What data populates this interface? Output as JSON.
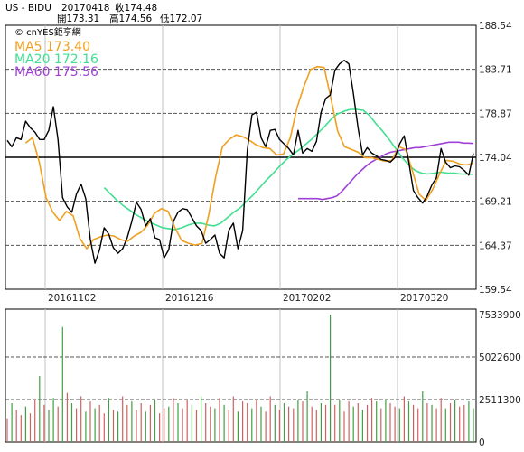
{
  "header": {
    "symbol": "US - BIDU",
    "date": "20170418",
    "close_label": "收174.48",
    "open_label": "開173.31",
    "high_label": "高174.56",
    "low_label": "低172.07"
  },
  "source_label": "© cnYES鉅亨網",
  "colors": {
    "price": "#000000",
    "ma5": "#f0a020",
    "ma20": "#40e090",
    "ma60": "#a040d8",
    "vol_up": "#d06060",
    "vol_down": "#40a040",
    "grid_dash": "#555555",
    "grid_vert": "#c0c0c0",
    "frame": "#000000"
  },
  "chart_data": [
    {
      "type": "line",
      "title": "",
      "x_tick_labels": [
        "20161102",
        "20161216",
        "20170202",
        "20170320"
      ],
      "y_tick_labels": [
        "188.54",
        "183.71",
        "178.87",
        "174.04",
        "169.21",
        "164.37",
        "159.54"
      ],
      "ylim": [
        159.54,
        188.54
      ],
      "reference_line": 174.04,
      "grid": true,
      "series": [
        {
          "name": "MA5 173.40",
          "role": "ma5",
          "x_start": 8,
          "values": [
            175.6,
            176.2,
            173.5,
            169.6,
            168.0,
            167.1,
            168.1,
            167.6,
            165.1,
            164.0,
            165.0,
            165.3,
            165.5,
            165.4,
            165.0,
            164.8,
            165.4,
            165.8,
            166.6,
            167.9,
            168.4,
            168.1,
            166.3,
            164.9,
            164.6,
            164.4,
            164.6,
            167.8,
            171.9,
            175.2,
            176.0,
            176.5,
            176.3,
            175.9,
            175.4,
            175.1,
            175.0,
            174.3,
            174.4,
            176.2,
            179.5,
            181.8,
            183.7,
            184.0,
            183.9,
            180.5,
            176.9,
            175.2,
            174.9,
            174.6,
            174.0,
            174.0,
            173.8,
            173.6,
            173.7,
            175.2,
            174.9,
            172.6,
            170.0,
            169.3,
            170.5,
            172.2,
            173.7,
            173.6,
            173.3,
            173.2,
            173.4
          ],
          "step": 2
        },
        {
          "name": "MA20 172.16",
          "role": "ma20",
          "x_start": 42,
          "step": 2,
          "values": [
            170.7,
            170.0,
            169.3,
            168.7,
            168.2,
            167.7,
            167.3,
            166.9,
            166.6,
            166.3,
            166.2,
            166.1,
            166.3,
            166.6,
            166.8,
            166.8,
            166.6,
            166.5,
            166.8,
            167.4,
            168.0,
            168.5,
            169.2,
            169.9,
            170.7,
            171.5,
            172.2,
            173.0,
            173.7,
            174.3,
            174.8,
            175.4,
            176.0,
            176.7,
            177.4,
            178.2,
            178.8,
            179.1,
            179.3,
            179.3,
            179.2,
            178.6,
            177.7,
            176.9,
            176.0,
            175.0,
            174.0,
            173.2,
            172.6,
            172.3,
            172.2,
            172.3,
            172.4,
            172.3,
            172.3,
            172.2,
            172.2,
            172.16
          ]
        },
        {
          "name": "MA60 175.56",
          "role": "ma60",
          "x_start": 127,
          "step": 2,
          "values": [
            169.5,
            169.5,
            169.5,
            169.5,
            169.5,
            169.4,
            169.5,
            169.6,
            169.8,
            170.3,
            170.9,
            171.5,
            172.1,
            172.6,
            173.1,
            173.5,
            173.8,
            174.1,
            174.4,
            174.6,
            174.7,
            174.8,
            174.9,
            175.0,
            175.1,
            175.1,
            175.2,
            175.3,
            175.4,
            175.5,
            175.6,
            175.7,
            175.7,
            175.7,
            175.6,
            175.6,
            175.56
          ]
        },
        {
          "name": "BIDU",
          "role": "price",
          "x_start": 0,
          "step": 2,
          "values": [
            175.9,
            175.2,
            176.2,
            176.0,
            178.0,
            177.3,
            176.8,
            176.0,
            176.0,
            177.0,
            179.6,
            176.0,
            169.6,
            168.6,
            168.0,
            170.0,
            171.1,
            169.5,
            165.0,
            162.4,
            163.9,
            166.3,
            165.6,
            164.1,
            163.5,
            164.0,
            165.2,
            167.0,
            169.1,
            168.3,
            166.5,
            167.3,
            165.2,
            165.0,
            163.0,
            163.9,
            167.0,
            168.0,
            168.4,
            168.3,
            167.4,
            166.5,
            166.0,
            164.6,
            165.0,
            165.5,
            163.5,
            163.0,
            166.0,
            166.8,
            164.0,
            166.0,
            174.8,
            178.7,
            179.0,
            176.2,
            175.2,
            177.0,
            177.1,
            176.0,
            175.5,
            175.0,
            174.3,
            177.0,
            174.5,
            175.0,
            174.7,
            175.8,
            179.0,
            180.5,
            180.9,
            183.6,
            184.3,
            184.7,
            184.3,
            181.0,
            177.3,
            174.3,
            175.1,
            174.5,
            174.2,
            173.8,
            173.7,
            173.5,
            174.0,
            175.5,
            176.4,
            173.5,
            170.4,
            169.6,
            169.0,
            169.8,
            171.0,
            171.8,
            175.0,
            173.5,
            172.9,
            173.1,
            173.0,
            172.6,
            172.07,
            174.48
          ],
          "x_positions_note": "spaced across plot"
        }
      ]
    },
    {
      "type": "bar",
      "title": "",
      "y_tick_labels": [
        "7533900",
        "5022600",
        "2511300",
        "0"
      ],
      "ylim": [
        0,
        7533900
      ],
      "series": [
        {
          "name": "Volume",
          "values": [
            1400000,
            2300000,
            1900000,
            1600000,
            2100000,
            1700000,
            2500000,
            3900000,
            2200000,
            1900000,
            2600000,
            2100000,
            6800000,
            2900000,
            2300000,
            2000000,
            2700000,
            1800000,
            2400000,
            2000000,
            2200000,
            1700000,
            2600000,
            1900000,
            1800000,
            2700000,
            2200000,
            2400000,
            1900000,
            2300000,
            1800000,
            2200000,
            2500000,
            1700000,
            2000000,
            2100000,
            2600000,
            2300000,
            2000000,
            2500000,
            2200000,
            1900000,
            2700000,
            2300000,
            2100000,
            2000000,
            2600000,
            2200000,
            1900000,
            2700000,
            1800000,
            2400000,
            2300000,
            2000000,
            2500000,
            2100000,
            1800000,
            2700000,
            2200000,
            1900000,
            2300000,
            2100000,
            2000000,
            2500000,
            2400000,
            3000000,
            2100000,
            1900000,
            2300000,
            2200000,
            7533900,
            2200000,
            2500000,
            1800000,
            2400000,
            2100000,
            2300000,
            1900000,
            2200000,
            2600000,
            2400000,
            2000000,
            2500000,
            2300000,
            2100000,
            2000000,
            2700000,
            2400000,
            2200000,
            2000000,
            3000000,
            2300000,
            2200000,
            2000000,
            2600000,
            2000000,
            2300000,
            2500000,
            2100000,
            2200000,
            2400000,
            2000000
          ],
          "up": [
            1,
            0,
            1,
            1,
            0,
            1,
            1,
            0,
            1,
            0,
            0,
            1,
            0,
            1,
            0,
            1,
            1,
            0,
            1,
            0,
            1,
            1,
            0,
            1,
            0,
            1,
            1,
            0,
            1,
            1,
            0,
            1,
            0,
            1,
            1,
            0,
            1,
            0,
            1,
            1,
            0,
            1,
            0,
            1,
            1,
            0,
            1,
            0,
            1,
            1,
            0,
            1,
            1,
            0,
            1,
            0,
            1,
            1,
            0,
            1,
            0,
            1,
            1,
            0,
            1,
            0,
            1,
            1,
            0,
            1,
            0,
            1,
            0,
            1,
            1,
            0,
            1,
            0,
            1,
            1,
            0,
            1,
            0,
            1,
            1,
            0,
            1,
            0,
            1,
            1,
            0,
            1,
            0,
            1,
            1,
            0,
            1,
            0,
            1,
            1,
            0
          ]
        }
      ]
    }
  ]
}
